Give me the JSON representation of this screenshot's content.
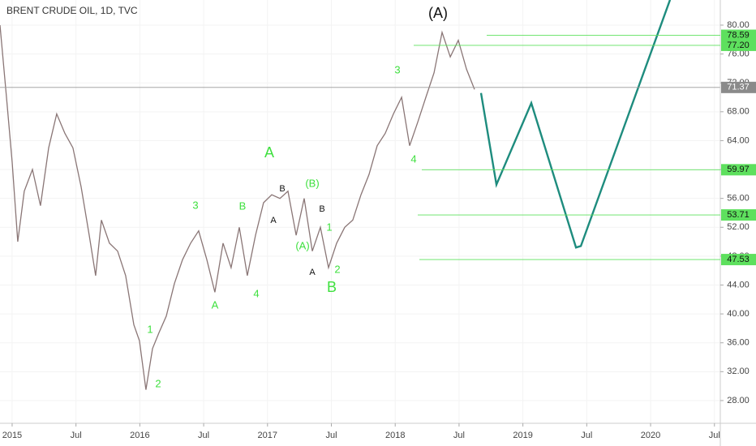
{
  "chart_data": {
    "type": "line",
    "title": "BRENT CRUDE OIL, 1D, TVC",
    "xlim": [
      2014.905,
      2020.546
    ],
    "ylim": [
      24.85,
      83.48
    ],
    "xticks": [
      2015,
      {
        "value": 2015.5,
        "label": "Jul"
      },
      2016,
      {
        "value": 2016.5,
        "label": "Jul"
      },
      2017,
      {
        "value": 2017.5,
        "label": "Jul"
      },
      2018,
      {
        "value": 2018.5,
        "label": "Jul"
      },
      2019,
      {
        "value": 2019.5,
        "label": "Jul"
      },
      2020,
      {
        "value": 2020.5,
        "label": "Jul"
      }
    ],
    "yticks": [
      {
        "value": 28,
        "label": "28.00"
      },
      {
        "value": 32,
        "label": "32.00"
      },
      {
        "value": 36,
        "label": "36.00"
      },
      {
        "value": 40,
        "label": "40.00"
      },
      {
        "value": 44,
        "label": "44.00"
      },
      {
        "value": 48,
        "label": "48.00"
      },
      {
        "value": 52,
        "label": "52.00"
      },
      {
        "value": 56,
        "label": "56.00"
      },
      {
        "value": 60,
        "label": "60.00"
      },
      {
        "value": 64,
        "label": "64.00"
      },
      {
        "value": 68,
        "label": "68.00"
      },
      {
        "value": 72,
        "label": "72.00"
      },
      {
        "value": 76,
        "label": "76.00"
      },
      {
        "value": 80,
        "label": "80.00"
      }
    ],
    "price": {
      "color": "#8a7676",
      "x": [
        2014.905,
        2014.956,
        2015.0,
        2015.044,
        2015.095,
        2015.159,
        2015.222,
        2015.286,
        2015.349,
        2015.413,
        2015.476,
        2015.54,
        2015.604,
        2015.654,
        2015.699,
        2015.762,
        2015.826,
        2015.889,
        2015.953,
        2015.997,
        2016.048,
        2016.099,
        2016.15,
        2016.207,
        2016.271,
        2016.334,
        2016.398,
        2016.461,
        2016.525,
        2016.588,
        2016.652,
        2016.715,
        2016.779,
        2016.842,
        2016.906,
        2016.969,
        2017.033,
        2017.097,
        2017.16,
        2017.224,
        2017.287,
        2017.351,
        2017.414,
        2017.478,
        2017.541,
        2017.605,
        2017.668,
        2017.732,
        2017.795,
        2017.859,
        2017.922,
        2017.986,
        2018.05,
        2018.113,
        2018.177,
        2018.24,
        2018.304,
        2018.367,
        2018.431,
        2018.494,
        2018.558,
        2018.621
      ],
      "values": [
        80,
        70,
        61,
        50,
        57,
        60,
        55,
        63,
        67.7,
        65,
        63,
        57.6,
        50.9,
        45.3,
        53,
        49.8,
        48.7,
        45.3,
        38.5,
        36.3,
        29.5,
        35.2,
        37.4,
        39.7,
        44.2,
        47.5,
        49.8,
        51.5,
        47.5,
        43,
        49.8,
        46.4,
        52,
        45.3,
        50.9,
        55.4,
        56.5,
        56,
        57,
        50.9,
        56,
        48.7,
        52,
        46.4,
        49.8,
        52,
        53,
        56.5,
        59.3,
        63.3,
        65,
        67.7,
        70,
        63.3,
        66.6,
        70,
        73.4,
        79,
        75.6,
        77.9,
        73.9,
        71.1
      ]
    },
    "forecast": {
      "color": "#1e8c7e",
      "x": [
        2018.672,
        2018.793,
        2019.066,
        2019.416,
        2019.454,
        2020.152
      ],
      "values": [
        70.6,
        57.9,
        69.2,
        49.2,
        49.4,
        83.5
      ]
    },
    "levels_color": "#5ee05e",
    "levels": [
      78.59,
      {
        "value": 77.2,
        "label": "77.20"
      },
      59.97,
      53.71,
      47.53
    ],
    "last_price": 71.37,
    "annotations": [
      "(A)",
      "A",
      "3",
      "B",
      "A",
      "4",
      "1",
      "2",
      "B",
      "A",
      "(B)",
      "(A)",
      "B",
      "A",
      "1",
      "2",
      "B",
      "3",
      "4"
    ]
  }
}
